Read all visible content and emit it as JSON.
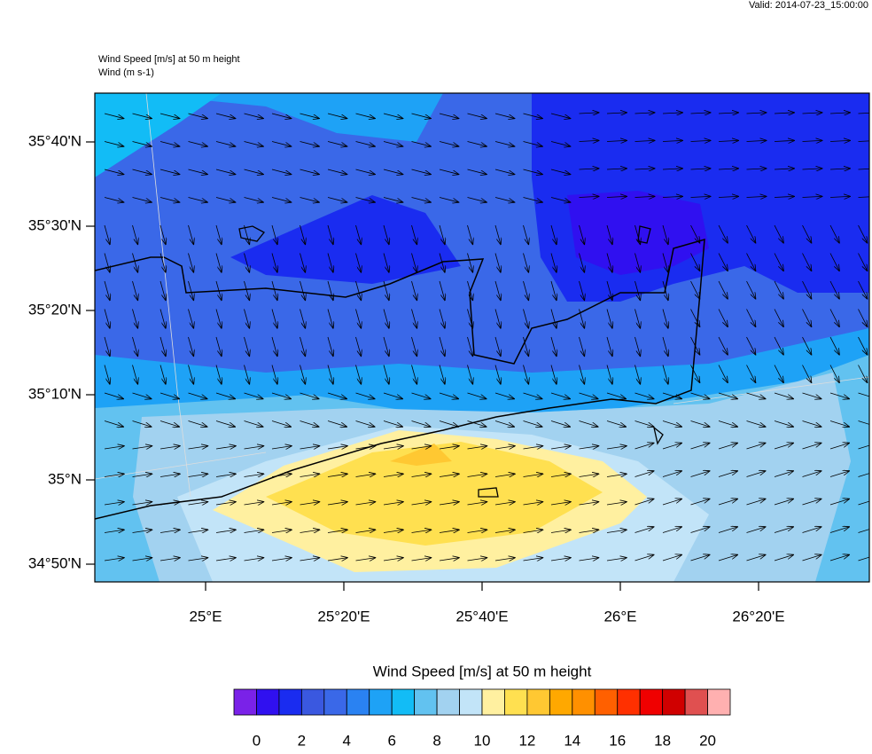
{
  "header": {
    "valid": "Valid: 2014-07-23_15:00:00",
    "title_lines": [
      "Wind Speed [m/s] at 50 m height",
      "Wind   (m s-1)"
    ]
  },
  "map": {
    "lat_labels": [
      "35°40'N",
      "35°30'N",
      "35°20'N",
      "35°10'N",
      "35°N",
      "34°50'N"
    ],
    "lon_labels": [
      "25°E",
      "25°20'E",
      "25°40'E",
      "26°E",
      "26°20'E"
    ]
  },
  "colorbar": {
    "title": "Wind Speed [m/s] at 50 m height",
    "colors": [
      "#7a22e8",
      "#3010f0",
      "#1a2cf0",
      "#3a58e0",
      "#3a68e8",
      "#2a82f2",
      "#1ea2f6",
      "#12bcf6",
      "#62c2f0",
      "#a2d2f0",
      "#c2e4f8",
      "#fff0a0",
      "#ffe050",
      "#ffc832",
      "#ffa800",
      "#ff9000",
      "#ff6000",
      "#ff3000",
      "#f00000",
      "#d00000",
      "#e05050",
      "#ffb0b0"
    ],
    "tick_labels": [
      0,
      2,
      4,
      6,
      8,
      10,
      12,
      14,
      16,
      18,
      20
    ]
  }
}
